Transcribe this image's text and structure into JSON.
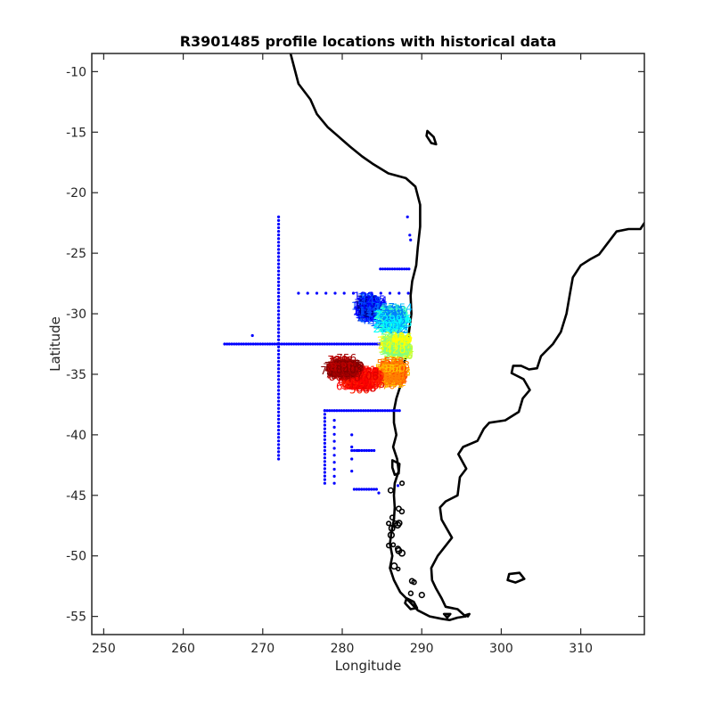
{
  "chart_data": {
    "type": "scatter",
    "title": "R3901485 profile locations with historical data",
    "xlabel": "Longitude",
    "ylabel": "Latitude",
    "xlim": [
      248.5,
      318.0
    ],
    "ylim": [
      -56.5,
      -8.5
    ],
    "xticks": [
      250,
      260,
      270,
      280,
      290,
      300,
      310
    ],
    "yticks": [
      -10,
      -15,
      -20,
      -25,
      -30,
      -35,
      -40,
      -45,
      -50,
      -55
    ],
    "grid": false,
    "historical_color": "#0000ff",
    "coast_color": "#000000",
    "colormap": "jet",
    "coastlines": [
      [
        [
          273.5,
          -8.5
        ],
        [
          274.5,
          -11
        ],
        [
          276,
          -12.3
        ],
        [
          276.8,
          -13.5
        ],
        [
          278.2,
          -14.6
        ],
        [
          279.6,
          -15.4
        ],
        [
          281,
          -16.2
        ],
        [
          282.5,
          -17
        ],
        [
          283.8,
          -17.6
        ],
        [
          285.8,
          -18.4
        ],
        [
          288,
          -18.8
        ],
        [
          289.2,
          -19.5
        ],
        [
          289.8,
          -21
        ],
        [
          289.8,
          -22.8
        ],
        [
          289.5,
          -24.5
        ],
        [
          289.3,
          -26
        ],
        [
          288.8,
          -27.3
        ],
        [
          288.6,
          -28.5
        ],
        [
          288.7,
          -30
        ],
        [
          288.4,
          -31.5
        ],
        [
          288.3,
          -33
        ],
        [
          287.8,
          -34
        ],
        [
          287.7,
          -35
        ],
        [
          287.3,
          -36
        ],
        [
          286.8,
          -37
        ],
        [
          286.5,
          -38
        ],
        [
          286.5,
          -39
        ],
        [
          286.8,
          -40
        ],
        [
          286.4,
          -41
        ],
        [
          286.9,
          -42
        ],
        [
          287.1,
          -43
        ],
        [
          286.6,
          -44
        ],
        [
          286.5,
          -45
        ],
        [
          286.6,
          -46
        ],
        [
          286.5,
          -47
        ],
        [
          286.2,
          -48
        ],
        [
          286.0,
          -49
        ],
        [
          286.3,
          -50
        ],
        [
          286.0,
          -51
        ],
        [
          286.5,
          -52
        ],
        [
          287.3,
          -53
        ],
        [
          288.5,
          -53.8
        ],
        [
          289.5,
          -54.5
        ],
        [
          291,
          -55
        ],
        [
          292.5,
          -55.2
        ],
        [
          293.5,
          -55.3
        ],
        [
          294.5,
          -55.1
        ],
        [
          295.5,
          -55
        ]
      ],
      [
        [
          295.5,
          -55
        ],
        [
          294.5,
          -54.4
        ],
        [
          293,
          -54.2
        ],
        [
          292.5,
          -53.5
        ],
        [
          291.8,
          -52.7
        ],
        [
          291.3,
          -52
        ],
        [
          291.2,
          -51
        ],
        [
          292,
          -50
        ],
        [
          293.8,
          -48.5
        ],
        [
          292.5,
          -47
        ],
        [
          292.3,
          -46
        ],
        [
          293,
          -45.5
        ],
        [
          294.5,
          -45
        ],
        [
          294.8,
          -43.5
        ],
        [
          295.6,
          -42.8
        ],
        [
          294.6,
          -41.6
        ],
        [
          295.2,
          -41
        ],
        [
          297,
          -40.5
        ],
        [
          297.8,
          -39.5
        ],
        [
          298.5,
          -39
        ],
        [
          300.5,
          -38.8
        ],
        [
          302.2,
          -38.1
        ],
        [
          302.7,
          -37
        ],
        [
          303.6,
          -36.3
        ],
        [
          302.8,
          -35.4
        ],
        [
          301.3,
          -34.9
        ],
        [
          301.5,
          -34.3
        ],
        [
          302.5,
          -34.3
        ],
        [
          303.5,
          -34.6
        ],
        [
          304.5,
          -34.5
        ],
        [
          305,
          -33.5
        ],
        [
          306.5,
          -32.5
        ],
        [
          307.5,
          -31.5
        ],
        [
          308.2,
          -30
        ],
        [
          308.6,
          -28.5
        ],
        [
          309,
          -27
        ],
        [
          310,
          -26
        ],
        [
          311.2,
          -25.5
        ],
        [
          312.3,
          -25.1
        ],
        [
          313,
          -24.5
        ],
        [
          314.5,
          -23.2
        ],
        [
          316,
          -23
        ],
        [
          317.5,
          -23
        ],
        [
          318,
          -22.5
        ]
      ]
    ],
    "islands": [
      [
        [
          290.7,
          -14.9
        ],
        [
          291.5,
          -15.4
        ],
        [
          291.8,
          -16
        ],
        [
          291.2,
          -15.9
        ],
        [
          290.6,
          -15.3
        ],
        [
          290.7,
          -14.9
        ]
      ],
      [
        [
          301,
          -51.5
        ],
        [
          302.3,
          -51.4
        ],
        [
          302.9,
          -51.9
        ],
        [
          301.8,
          -52.2
        ],
        [
          300.8,
          -52
        ],
        [
          301,
          -51.5
        ]
      ],
      [
        [
          288.1,
          -53.5
        ],
        [
          289,
          -53.8
        ],
        [
          289.4,
          -54.3
        ],
        [
          288.6,
          -54.4
        ],
        [
          287.9,
          -53.9
        ],
        [
          288.1,
          -53.5
        ]
      ],
      [
        [
          292.8,
          -54.8
        ],
        [
          293.6,
          -54.8
        ],
        [
          293.2,
          -55.1
        ],
        [
          292.8,
          -54.8
        ]
      ],
      [
        [
          295.5,
          -54.9
        ],
        [
          296,
          -54.8
        ],
        [
          295.8,
          -55
        ],
        [
          295.5,
          -54.9
        ]
      ],
      [
        [
          286.3,
          -42.1
        ],
        [
          287.2,
          -42.4
        ],
        [
          287.1,
          -43.2
        ],
        [
          286.6,
          -43.3
        ],
        [
          286.3,
          -42.7
        ],
        [
          286.3,
          -42.1
        ]
      ]
    ],
    "historical_lines": [
      {
        "from": [
          265.2,
          -32.5
        ],
        "to": [
          287.7,
          -32.5
        ],
        "step": 0.3
      },
      {
        "from": [
          272,
          -22
        ],
        "to": [
          272,
          -42
        ],
        "step": 0.3
      },
      {
        "from": [
          274.5,
          -28.3
        ],
        "to": [
          288.3,
          -28.3
        ],
        "step": 1.2
      },
      {
        "from": [
          284.8,
          -26.3
        ],
        "to": [
          288.4,
          -26.3
        ],
        "step": 0.3
      },
      {
        "from": [
          277.8,
          -38
        ],
        "to": [
          287.2,
          -38
        ],
        "step": 0.3
      },
      {
        "from": [
          277.8,
          -38
        ],
        "to": [
          277.8,
          -44
        ],
        "step": 0.3
      },
      {
        "from": [
          279,
          -38.8
        ],
        "to": [
          279,
          -44
        ],
        "step": 0.6
      },
      {
        "from": [
          281.2,
          -41.3
        ],
        "to": [
          284,
          -41.3
        ],
        "step": 0.3
      },
      {
        "from": [
          281.2,
          -40
        ],
        "to": [
          281.2,
          -43
        ],
        "step": 1
      },
      {
        "from": [
          281.5,
          -44.5
        ],
        "to": [
          284.3,
          -44.5
        ],
        "step": 0.3
      }
    ],
    "historical_points": [
      [
        288.2,
        -22
      ],
      [
        288.5,
        -23.5
      ],
      [
        288.6,
        -23.9
      ],
      [
        268.7,
        -31.8
      ],
      [
        285.1,
        -30.3
      ],
      [
        284.6,
        -44.8
      ],
      [
        282,
        -41.3
      ],
      [
        287,
        -44.2
      ]
    ],
    "profile_clusters": [
      {
        "colors": [
          "#00008f",
          "#0000ff",
          "#0050ff"
        ],
        "center": [
          283.5,
          -29.8
        ],
        "spread": [
          1.6,
          1.3
        ],
        "count": 150
      },
      {
        "colors": [
          "#0080ff",
          "#00c0ff",
          "#00ffff",
          "#40ffbf"
        ],
        "center": [
          286.3,
          -30.8
        ],
        "spread": [
          1.5,
          1.2
        ],
        "count": 150
      },
      {
        "colors": [
          "#80ff80",
          "#c0ff40",
          "#ffff00"
        ],
        "center": [
          286.8,
          -33.0
        ],
        "spread": [
          1.5,
          1.2
        ],
        "count": 120
      },
      {
        "colors": [
          "#ffc000",
          "#ff8000",
          "#ff5000"
        ],
        "center": [
          286.2,
          -35.3
        ],
        "spread": [
          1.5,
          1.2
        ],
        "count": 140
      },
      {
        "colors": [
          "#ff2000",
          "#ff0000",
          "#e00000"
        ],
        "center": [
          282.3,
          -35.7
        ],
        "spread": [
          2.4,
          1.1
        ],
        "count": 150
      },
      {
        "colors": [
          "#c00000",
          "#a00000",
          "#800000"
        ],
        "center": [
          280.2,
          -34.8
        ],
        "spread": [
          1.8,
          0.9
        ],
        "count": 130
      }
    ]
  }
}
